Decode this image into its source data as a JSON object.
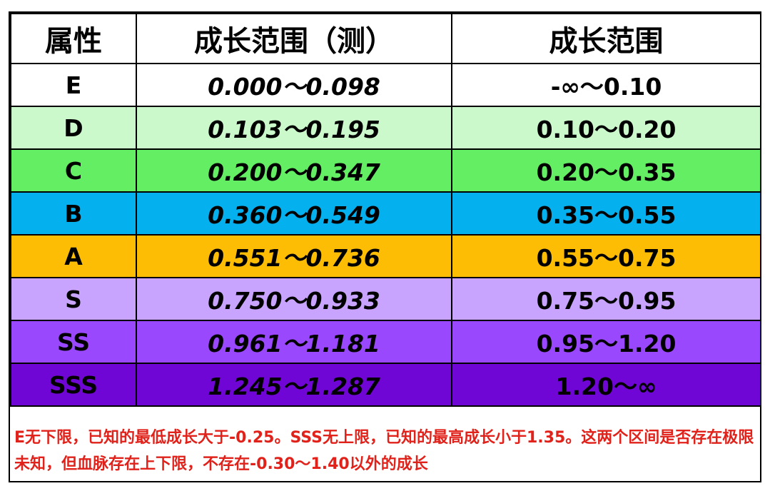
{
  "header": {
    "col1": "属性",
    "col2": "成长范围（测）",
    "col3": "成长范围"
  },
  "rows": [
    {
      "grade": "E",
      "measured": "0.000～0.098",
      "range": "-∞～0.10",
      "color": "#ffffff"
    },
    {
      "grade": "D",
      "measured": "0.103～0.195",
      "range": "0.10～0.20",
      "color": "#ccf9cc"
    },
    {
      "grade": "C",
      "measured": "0.200～0.347",
      "range": "0.20～0.35",
      "color": "#64ee64"
    },
    {
      "grade": "B",
      "measured": "0.360～0.549",
      "range": "0.35～0.55",
      "color": "#04b0ee"
    },
    {
      "grade": "A",
      "measured": "0.551～0.736",
      "range": "0.55～0.75",
      "color": "#fcbd04"
    },
    {
      "grade": "S",
      "measured": "0.750～0.933",
      "range": "0.75～0.95",
      "color": "#c9a4ff"
    },
    {
      "grade": "SS",
      "measured": "0.961～1.181",
      "range": "0.95～1.20",
      "color": "#9a48fe"
    },
    {
      "grade": "SSS",
      "measured": "1.245～1.287",
      "range": "1.20～∞",
      "color": "#6f06d6"
    }
  ],
  "note": "E无下限，已知的最低成长大于-0.25。SSS无上限，已知的最高成长小于1.35。这两个区间是否存在极限未知，但血脉存在上下限，不存在-0.30～1.40以外的成长"
}
